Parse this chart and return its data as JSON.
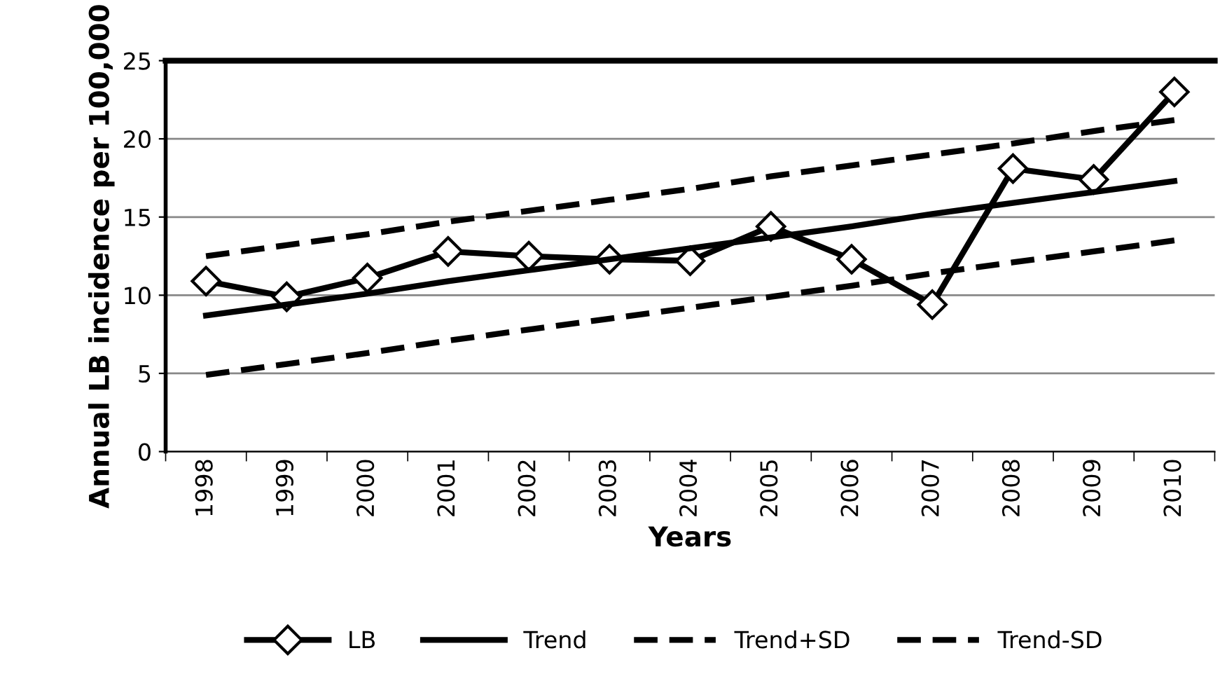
{
  "chart_data": {
    "type": "line",
    "xlabel": "Years",
    "ylabel": "Annual LB incidence per 100,000",
    "categories": [
      "1998",
      "1999",
      "2000",
      "2001",
      "2002",
      "2003",
      "2004",
      "2005",
      "2006",
      "2007",
      "2008",
      "2009",
      "2010"
    ],
    "series": [
      {
        "name": "LB",
        "color": "#000000",
        "marker": "diamond",
        "line_style": "solid",
        "values": [
          10.9,
          9.9,
          11.1,
          12.8,
          12.5,
          12.3,
          12.2,
          14.4,
          12.3,
          9.4,
          18.1,
          17.4,
          23.0
        ]
      },
      {
        "name": "Trend",
        "color": "#000000",
        "marker": "none",
        "line_style": "solid",
        "values": [
          8.7,
          9.4,
          10.1,
          10.9,
          11.6,
          12.3,
          13.0,
          13.7,
          14.4,
          15.2,
          15.9,
          16.6,
          17.3
        ]
      },
      {
        "name": "Trend+SD",
        "color": "#000000",
        "marker": "none",
        "line_style": "dashed",
        "values": [
          12.5,
          13.2,
          13.9,
          14.7,
          15.4,
          16.1,
          16.8,
          17.6,
          18.3,
          19.0,
          19.7,
          20.5,
          21.2
        ]
      },
      {
        "name": "Trend-SD",
        "color": "#000000",
        "marker": "none",
        "line_style": "dashed",
        "values": [
          4.9,
          5.6,
          6.3,
          7.1,
          7.8,
          8.5,
          9.2,
          9.9,
          10.6,
          11.4,
          12.1,
          12.8,
          13.5
        ]
      }
    ],
    "ylim": [
      0,
      25
    ],
    "yticks": [
      0,
      5,
      10,
      15,
      20,
      25
    ],
    "grid": "y",
    "legend": "bottom"
  }
}
